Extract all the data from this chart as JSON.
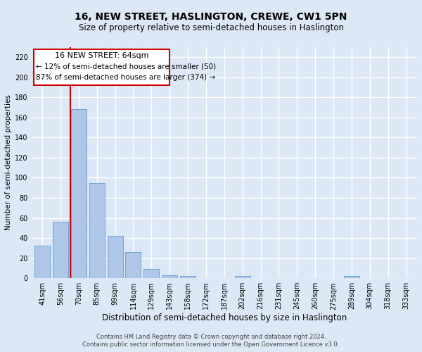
{
  "title": "16, NEW STREET, HASLINGTON, CREWE, CW1 5PN",
  "subtitle": "Size of property relative to semi-detached houses in Haslington",
  "xlabel": "Distribution of semi-detached houses by size in Haslington",
  "ylabel": "Number of semi-detached properties",
  "bar_labels": [
    "41sqm",
    "56sqm",
    "70sqm",
    "85sqm",
    "99sqm",
    "114sqm",
    "129sqm",
    "143sqm",
    "158sqm",
    "172sqm",
    "187sqm",
    "202sqm",
    "216sqm",
    "231sqm",
    "245sqm",
    "260sqm",
    "275sqm",
    "289sqm",
    "304sqm",
    "318sqm",
    "333sqm"
  ],
  "bar_values": [
    32,
    56,
    168,
    95,
    42,
    26,
    9,
    3,
    2,
    0,
    0,
    2,
    0,
    0,
    0,
    0,
    0,
    2,
    0,
    0,
    0
  ],
  "bar_color": "#aec6e8",
  "bar_edgecolor": "#5a9fd4",
  "ylim": [
    0,
    230
  ],
  "yticks": [
    0,
    20,
    40,
    60,
    80,
    100,
    120,
    140,
    160,
    180,
    200,
    220
  ],
  "vline_x": 1.55,
  "vline_color": "#cc0000",
  "annotation_title": "16 NEW STREET: 64sqm",
  "annotation_line1": "← 12% of semi-detached houses are smaller (50)",
  "annotation_line2": "87% of semi-detached houses are larger (374) →",
  "annotation_border_color": "#cc0000",
  "footer1": "Contains HM Land Registry data © Crown copyright and database right 2024.",
  "footer2": "Contains public sector information licensed under the Open Government Licence v3.0.",
  "background_color": "#dce8f5",
  "plot_bg_color": "#dce8f5",
  "grid_color": "#ffffff",
  "title_fontsize": 10,
  "subtitle_fontsize": 8.5,
  "tick_fontsize": 7,
  "ylabel_fontsize": 7.5,
  "xlabel_fontsize": 8.5,
  "footer_fontsize": 6
}
